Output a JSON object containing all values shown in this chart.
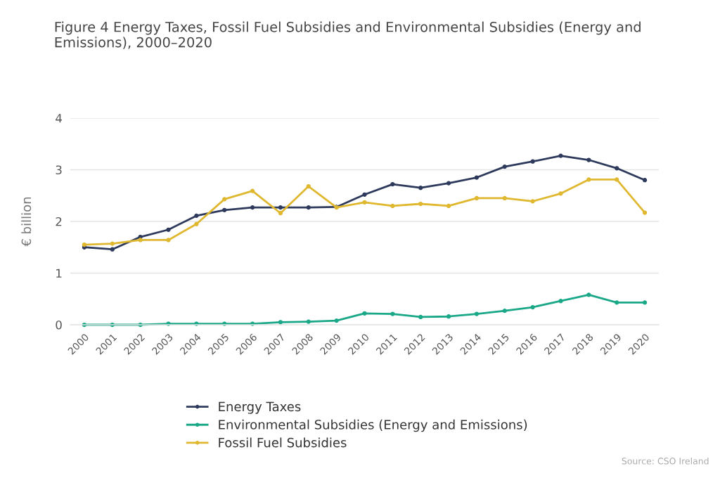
{
  "chart_data": {
    "type": "line",
    "title": "Figure 4 Energy Taxes, Fossil Fuel Subsidies and Environmental Subsidies (Energy and Emissions), 2000–2020",
    "ylabel": "€ billion",
    "categories": [
      "2000",
      "2001",
      "2002",
      "2003",
      "2004",
      "2005",
      "2006",
      "2007",
      "2008",
      "2009",
      "2010",
      "2011",
      "2012",
      "2013",
      "2014",
      "2015",
      "2016",
      "2017",
      "2018",
      "2019",
      "2020"
    ],
    "series": [
      {
        "name": "Energy Taxes",
        "color": "#2e3a5c",
        "values": [
          1.5,
          1.46,
          1.7,
          1.84,
          2.11,
          2.22,
          2.27,
          2.27,
          2.27,
          2.28,
          2.52,
          2.72,
          2.65,
          2.74,
          2.85,
          3.06,
          3.16,
          3.27,
          3.19,
          3.03,
          2.8
        ]
      },
      {
        "name": "Environmental Subsidies (Energy and Emissions)",
        "color": "#1aa888",
        "values": [
          0.0,
          0.0,
          0.0,
          0.02,
          0.02,
          0.02,
          0.02,
          0.05,
          0.06,
          0.08,
          0.22,
          0.21,
          0.15,
          0.16,
          0.21,
          0.27,
          0.34,
          0.46,
          0.58,
          0.43,
          0.43
        ]
      },
      {
        "name": "Fossil Fuel Subsidies",
        "color": "#e0b830",
        "values": [
          1.55,
          1.57,
          1.64,
          1.64,
          1.95,
          2.43,
          2.59,
          2.16,
          2.68,
          2.27,
          2.37,
          2.3,
          2.34,
          2.3,
          2.45,
          2.45,
          2.39,
          2.54,
          2.81,
          2.81,
          2.17
        ]
      }
    ],
    "ylim": [
      0,
      4
    ],
    "yticks": [
      0,
      1,
      2,
      3,
      4
    ],
    "grid": "y",
    "legend": "bottom",
    "marker": "circle",
    "line_style": "solid",
    "annotations": [
      "Source: CSO Ireland"
    ]
  }
}
